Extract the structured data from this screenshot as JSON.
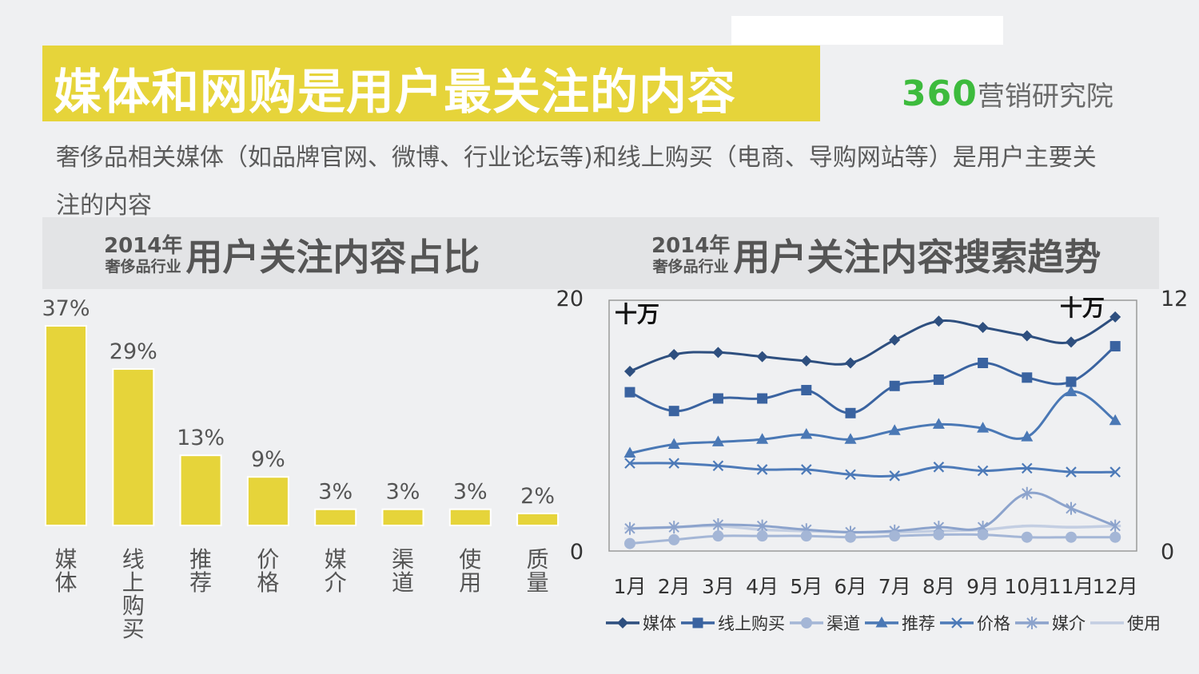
{
  "header": {
    "title": "媒体和网购是用户最关注的内容",
    "logo_number": "360",
    "logo_text": "营销研究院",
    "subtitle": "奢侈品相关媒体（如品牌官网、微博、行业论坛等)和线上购买（电商、导购网站等）是用户主要关注的内容"
  },
  "left_panel": {
    "year": "2014年",
    "industry": "奢侈品行业",
    "title": "用户关注内容占比"
  },
  "right_panel": {
    "year": "2014年",
    "industry": "奢侈品行业",
    "title": "用户关注内容搜索趋势"
  },
  "colors": {
    "bar": "#e6d43a",
    "title_bg": "#e6d43a",
    "logo_green": "#3dbb3d"
  },
  "chart_data": [
    {
      "type": "bar",
      "categories": [
        "媒体",
        "线上购买",
        "推荐",
        "价格",
        "媒介",
        "渠道",
        "使用",
        "质量"
      ],
      "values": [
        37,
        29,
        13,
        9,
        3,
        3,
        3,
        2
      ],
      "labels": [
        "37%",
        "29%",
        "13%",
        "9%",
        "3%",
        "3%",
        "3%",
        "2%"
      ],
      "ylim": [
        0,
        40
      ]
    },
    {
      "type": "line",
      "x": [
        "1月",
        "2月",
        "3月",
        "4月",
        "5月",
        "6月",
        "7月",
        "8月",
        "9月",
        "10月",
        "11月",
        "12月"
      ],
      "left_axis": {
        "ticks": [
          "20",
          "0"
        ],
        "range": [
          0,
          20
        ]
      },
      "right_axis": {
        "ticks": [
          "12",
          "0"
        ],
        "range": [
          0,
          12
        ]
      },
      "unit_left": "十万",
      "unit_right": "十万",
      "series": [
        {
          "name": "媒体",
          "color": "#2e4f7f",
          "marker": "diamond",
          "axis": "right",
          "values": [
            8.6,
            9.4,
            9.5,
            9.3,
            9.1,
            9.0,
            10.1,
            11.0,
            10.7,
            10.3,
            10.0,
            11.2
          ]
        },
        {
          "name": "线上购买",
          "color": "#3a63a0",
          "marker": "square",
          "axis": "right",
          "values": [
            7.6,
            6.7,
            7.3,
            7.3,
            7.7,
            6.6,
            7.9,
            8.2,
            9.0,
            8.3,
            8.1,
            9.8
          ]
        },
        {
          "name": "渠道",
          "color": "#a4b6d6",
          "marker": "circle",
          "axis": "left",
          "values": [
            0.6,
            0.9,
            1.2,
            1.2,
            1.2,
            1.1,
            1.2,
            1.3,
            1.3,
            1.1,
            1.1,
            1.1
          ]
        },
        {
          "name": "推荐",
          "color": "#4a78b5",
          "marker": "triangle",
          "axis": "left",
          "values": [
            7.8,
            8.5,
            8.7,
            8.9,
            9.3,
            8.9,
            9.6,
            10.1,
            9.8,
            9.1,
            12.7,
            10.4
          ]
        },
        {
          "name": "价格",
          "color": "#4d7ab8",
          "marker": "x",
          "axis": "left",
          "values": [
            7.0,
            7.0,
            6.8,
            6.5,
            6.5,
            6.1,
            6.0,
            6.7,
            6.4,
            6.6,
            6.3,
            6.3
          ]
        },
        {
          "name": "媒介",
          "color": "#8ca3cc",
          "marker": "star",
          "axis": "left",
          "values": [
            1.8,
            1.9,
            2.1,
            2.0,
            1.7,
            1.5,
            1.6,
            1.9,
            1.9,
            4.6,
            3.4,
            2.0
          ]
        },
        {
          "name": "使用",
          "color": "#c3cee2",
          "marker": "bar",
          "axis": "left",
          "values": [
            1.8,
            1.9,
            2.0,
            1.7,
            1.6,
            1.5,
            1.5,
            1.6,
            1.7,
            2.0,
            1.9,
            2.0
          ]
        }
      ]
    }
  ]
}
